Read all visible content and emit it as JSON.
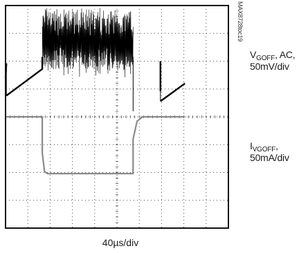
{
  "figure": {
    "part_code": "MAX8728toc19"
  },
  "colors": {
    "frame": "#111111",
    "grid": "#444444",
    "trace_voltage": "#000000",
    "trace_current": "#8a8a8a"
  },
  "chart_data": {
    "type": "line",
    "title": "",
    "xlabel": "40µs/div",
    "grid": true,
    "divisions": {
      "x": 10,
      "y": 8
    },
    "xlim": [
      0,
      400
    ],
    "x_unit": "µs",
    "series": [
      {
        "name_parts": {
          "sym": "V",
          "sub": "GOFF",
          "rest": ", AC,"
        },
        "scale_text": "50mV/div",
        "ylim": [
          -200,
          200
        ],
        "unit": "mV",
        "points": [
          [
            0,
            70
          ],
          [
            1.5,
            96
          ],
          [
            1.5,
            38
          ],
          [
            66,
            86
          ],
          [
            66,
            108
          ],
          [
            66,
            135
          ],
          [
            229,
            135
          ],
          [
            229,
            108
          ],
          [
            229,
            10
          ],
          [
            278,
            46
          ],
          [
            278,
            100
          ],
          [
            278,
            28
          ],
          [
            322,
            60
          ]
        ],
        "noise_region": {
          "x_start": 66,
          "x_end": 229,
          "center_mv": 135,
          "amplitude_mv": 55
        }
      },
      {
        "name_parts": {
          "sym": "I",
          "sub": "VGOFF",
          "rest": ","
        },
        "scale_text": "50mA/div",
        "ylim": [
          -200,
          200
        ],
        "unit": "mA",
        "points": [
          [
            0,
            0
          ],
          [
            66,
            0
          ],
          [
            66,
            -65
          ],
          [
            70,
            -98
          ],
          [
            75,
            -102
          ],
          [
            229,
            -102
          ],
          [
            229,
            -40
          ],
          [
            236,
            -8
          ],
          [
            246,
            0
          ],
          [
            322,
            0
          ]
        ]
      }
    ]
  }
}
